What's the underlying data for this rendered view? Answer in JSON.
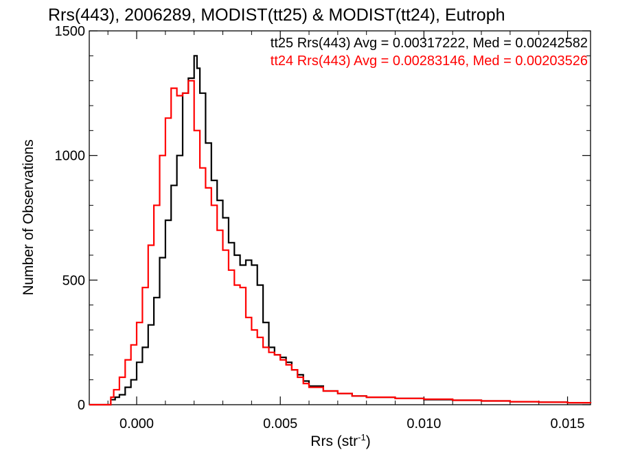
{
  "chart_data": {
    "type": "line",
    "title": "Rrs(443), 2006289, MODIST(tt25) & MODIST(tt24), Eutroph",
    "xlabel": "Rrs (str",
    "xlabel_sup": "-1",
    "xlabel_end": ")",
    "ylabel": "Number of Observations",
    "xlim": [
      -0.00165,
      0.0158
    ],
    "ylim": [
      0,
      1500
    ],
    "xticks": [
      {
        "value": 0.0,
        "label": "0.000"
      },
      {
        "value": 0.005,
        "label": "0.005"
      },
      {
        "value": 0.01,
        "label": "0.010"
      },
      {
        "value": 0.015,
        "label": "0.015"
      }
    ],
    "yticks": [
      {
        "value": 0,
        "label": "0"
      },
      {
        "value": 500,
        "label": "500"
      },
      {
        "value": 1000,
        "label": "1000"
      },
      {
        "value": 1500,
        "label": "1500"
      }
    ],
    "legend_position": "top-right",
    "series": [
      {
        "name": "tt25",
        "legend_text": "tt25 Rrs(443) Avg = 0.00317222, Med = 0.00242582",
        "color": "#000000",
        "step": true,
        "x": [
          -0.00165,
          -0.001,
          -0.0009,
          -0.00075,
          -0.0006,
          -0.0004,
          -0.0002,
          0.0,
          0.0002,
          0.0004,
          0.0006,
          0.0008,
          0.001,
          0.0012,
          0.0014,
          0.0016,
          0.0018,
          0.002,
          0.0021,
          0.0022,
          0.0024,
          0.0026,
          0.0028,
          0.003,
          0.0032,
          0.0034,
          0.0036,
          0.0038,
          0.004,
          0.0042,
          0.0044,
          0.0046,
          0.0048,
          0.005,
          0.0052,
          0.0054,
          0.0056,
          0.0058,
          0.006,
          0.0065,
          0.007,
          0.0075,
          0.008,
          0.009,
          0.01,
          0.011,
          0.012,
          0.013,
          0.014,
          0.015,
          0.0158
        ],
        "y": [
          0,
          0,
          20,
          30,
          40,
          70,
          100,
          170,
          230,
          320,
          430,
          590,
          740,
          880,
          1000,
          1250,
          1310,
          1400,
          1350,
          1250,
          1050,
          900,
          820,
          750,
          650,
          600,
          560,
          580,
          560,
          480,
          330,
          230,
          200,
          190,
          170,
          140,
          120,
          95,
          75,
          55,
          45,
          35,
          30,
          25,
          20,
          18,
          15,
          12,
          10,
          8,
          6
        ]
      },
      {
        "name": "tt24",
        "legend_text": "tt24 Rrs(443) Avg = 0.00283146, Med = 0.00203526",
        "color": "#ff0000",
        "step": true,
        "x": [
          -0.00165,
          -0.001,
          -0.0009,
          -0.0008,
          -0.0006,
          -0.0004,
          -0.0002,
          0.0,
          0.0002,
          0.0004,
          0.0006,
          0.0008,
          0.001,
          0.0012,
          0.0014,
          0.0016,
          0.0018,
          0.002,
          0.0022,
          0.0024,
          0.0026,
          0.0028,
          0.003,
          0.0032,
          0.0034,
          0.0036,
          0.0038,
          0.004,
          0.0042,
          0.0044,
          0.0046,
          0.0048,
          0.005,
          0.0052,
          0.0054,
          0.0056,
          0.0058,
          0.006,
          0.0065,
          0.007,
          0.0075,
          0.008,
          0.009,
          0.01,
          0.011,
          0.012,
          0.013,
          0.014,
          0.015,
          0.0158
        ],
        "y": [
          0,
          0,
          30,
          60,
          110,
          180,
          240,
          330,
          470,
          640,
          800,
          1000,
          1150,
          1270,
          1240,
          1250,
          1300,
          1100,
          950,
          870,
          800,
          700,
          620,
          540,
          480,
          470,
          350,
          300,
          270,
          230,
          210,
          200,
          180,
          160,
          140,
          110,
          85,
          70,
          55,
          45,
          35,
          30,
          25,
          22,
          18,
          15,
          12,
          10,
          8,
          6
        ]
      }
    ]
  }
}
